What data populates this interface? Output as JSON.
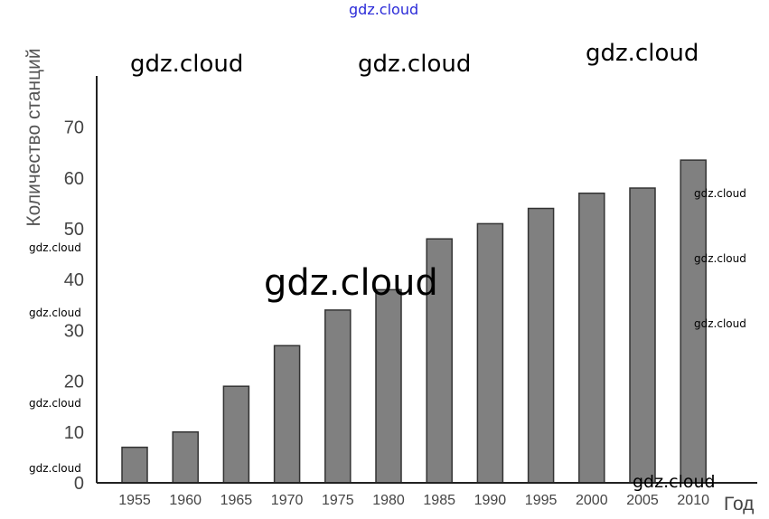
{
  "chart_data": {
    "type": "bar",
    "categories": [
      "1955",
      "1960",
      "1965",
      "1970",
      "1975",
      "1980",
      "1985",
      "1990",
      "1995",
      "2000",
      "2005",
      "2010"
    ],
    "values": [
      7,
      10,
      19,
      27,
      34,
      38,
      48,
      51,
      54,
      57,
      58,
      63.5
    ],
    "ylabel": "Количество станций",
    "xlabel": "Год",
    "ylim": [
      0,
      80
    ],
    "yticks": [
      0,
      10,
      20,
      30,
      40,
      50,
      60,
      70
    ],
    "grid": false,
    "bar_color": "#808080",
    "bar_edge_color": "#333333"
  },
  "watermarks": [
    "gdz.cloud",
    "gdz.cloud",
    "gdz.cloud",
    "gdz.cloud",
    "gdz.cloud",
    "gdz.cloud",
    "gdz.cloud",
    "gdz.cloud",
    "gdz.cloud",
    "gdz.cloud",
    "gdz.cloud",
    "gdz.cloud",
    "gdz.cloud"
  ]
}
